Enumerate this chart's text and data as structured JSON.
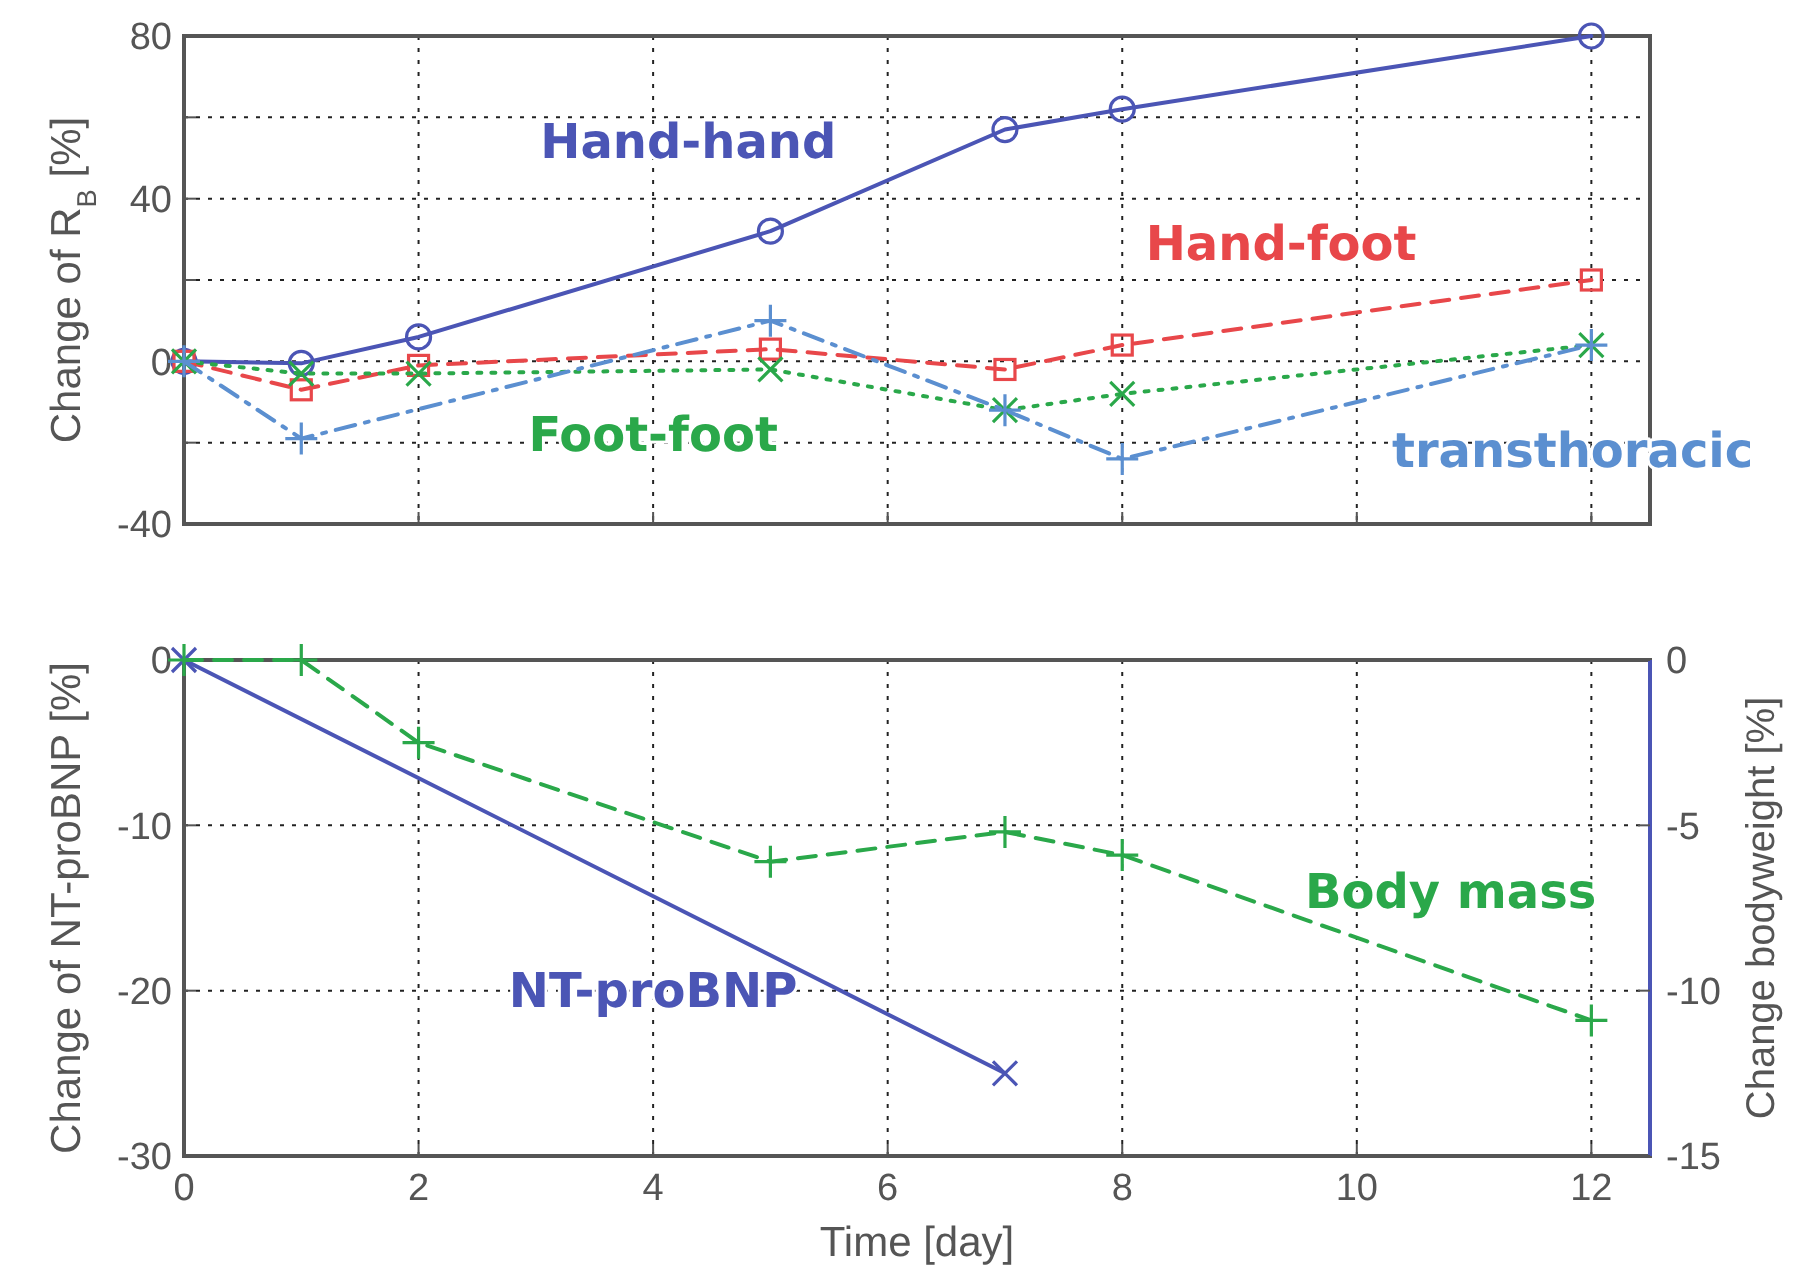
{
  "chart_data": [
    {
      "type": "line",
      "ylabel": "Change of R$_{B}$ [%]",
      "x": [
        0,
        1,
        2,
        5,
        7,
        8,
        12
      ],
      "xlim": [
        0,
        12.5
      ],
      "xticks": [
        0,
        2,
        4,
        6,
        8,
        10,
        12
      ],
      "ylim": [
        -40,
        80
      ],
      "yticks": [
        -40,
        {
          "value": -20,
          "label": null
        },
        0,
        {
          "value": 20,
          "label": null
        },
        40,
        {
          "value": 60,
          "label": null
        },
        80
      ],
      "grid": true,
      "tick_labels": "y",
      "series": [
        {
          "name": "Hand-hand",
          "color": "#4b55b5",
          "marker": "circle",
          "line_style": "solid",
          "values": [
            0,
            -0.5,
            6,
            32,
            57,
            62,
            80
          ]
        },
        {
          "name": "Hand-foot",
          "color": "#e8474a",
          "marker": "square",
          "line_style": "dashed",
          "values": [
            0,
            -7,
            -1,
            3,
            -2,
            4,
            20
          ]
        },
        {
          "name": "Foot-foot",
          "color": "#2aa84a",
          "marker": "x",
          "line_style": "dotted",
          "values": [
            0,
            -3,
            -3,
            -2,
            -12,
            -8,
            4
          ]
        },
        {
          "name": "transthoracic",
          "color": "#5b8fd0",
          "marker": "cross",
          "line_style": "dashdot",
          "x": [
            0,
            1,
            5,
            7,
            8,
            12
          ],
          "values": [
            0,
            -19,
            10,
            -12,
            -24,
            4
          ]
        }
      ]
    },
    {
      "type": "line",
      "ylabel": "Change of NT-proBNP [%]",
      "xlabel": "Time [day]",
      "y2label": "Change bodyweight [%]",
      "xlim": [
        0,
        12.5
      ],
      "xticks": [
        0,
        2,
        4,
        6,
        8,
        10,
        12
      ],
      "ylim": [
        -30,
        0
      ],
      "yticks": [
        -30,
        -20,
        -10,
        0
      ],
      "y2lim": [
        -15,
        0
      ],
      "y2ticks": [
        -15,
        -10,
        -5,
        0
      ],
      "grid": true,
      "series": [
        {
          "name": "NT-proBNP",
          "color": "#4b55b5",
          "marker": "x",
          "line_style": "solid",
          "x": [
            0,
            7
          ],
          "values": [
            0,
            -25
          ]
        },
        {
          "name": "Body mass",
          "color": "#2aa84a",
          "marker": "cross",
          "line_style": "dashed",
          "axis": "y2",
          "x": [
            0,
            1,
            2,
            5,
            7,
            8,
            12
          ],
          "values": [
            0,
            0,
            -2.5,
            -6.1,
            -5.2,
            -5.9,
            -10.9
          ]
        }
      ]
    }
  ]
}
